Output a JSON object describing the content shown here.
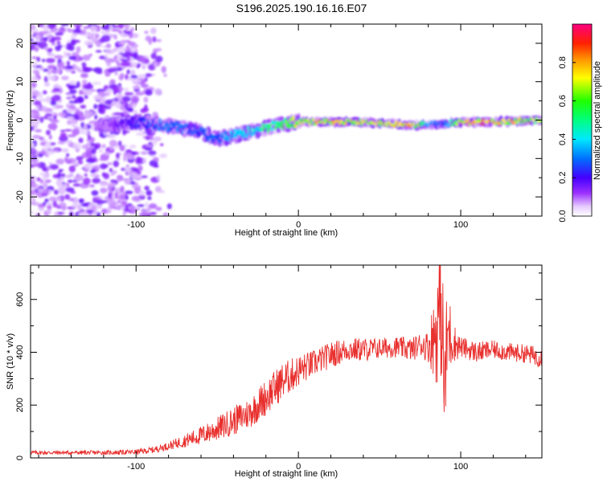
{
  "title": "S196.2025.190.16.16.E07",
  "chart_data": [
    {
      "type": "heatmap",
      "xlabel": "Height of straight line (km)",
      "ylabel": "Frequency (Hz)",
      "xlim": [
        -165,
        150
      ],
      "ylim": [
        -25,
        25
      ],
      "xticks": [
        -100,
        0,
        100
      ],
      "yticks": [
        -20,
        -10,
        0,
        10,
        20
      ],
      "colorbar": {
        "label": "Normalized spectral amplitude",
        "range": [
          0,
          1
        ],
        "ticks": [
          0.0,
          0.2,
          0.4,
          0.6,
          0.8
        ]
      },
      "ridge": {
        "x": [
          -120,
          -100,
          -80,
          -60,
          -50,
          -40,
          -30,
          -20,
          -10,
          0,
          20,
          40,
          60,
          70,
          80,
          90,
          100,
          120,
          150
        ],
        "freq": [
          -1.5,
          -0.5,
          -1.5,
          -3,
          -5,
          -4,
          -3,
          -2,
          -1,
          -0.5,
          -0.5,
          -0.5,
          -1,
          -1.5,
          -1,
          -1,
          -0.5,
          -0.5,
          0
        ],
        "amplitude": [
          0.1,
          0.25,
          0.35,
          0.3,
          0.35,
          0.4,
          0.45,
          0.55,
          0.6,
          0.8,
          0.85,
          0.8,
          0.85,
          0.9,
          0.4,
          0.3,
          0.85,
          0.9,
          0.7
        ]
      },
      "noise_region_x": [
        -165,
        -90
      ]
    },
    {
      "type": "line",
      "xlabel": "Height of straight line (km)",
      "ylabel": "SNR (10 * v/v)",
      "xlim": [
        -165,
        150
      ],
      "ylim": [
        0,
        730
      ],
      "xticks": [
        -100,
        0,
        100
      ],
      "yticks": [
        0,
        200,
        400,
        600
      ],
      "series": [
        {
          "color": "#e8302e",
          "x": [
            -165,
            -140,
            -120,
            -100,
            -90,
            -80,
            -70,
            -60,
            -50,
            -40,
            -30,
            -20,
            -10,
            0,
            10,
            20,
            30,
            40,
            50,
            60,
            70,
            75,
            80,
            85,
            88,
            90,
            92,
            95,
            100,
            110,
            120,
            130,
            140,
            150
          ],
          "values": [
            20,
            20,
            20,
            22,
            30,
            45,
            65,
            85,
            110,
            140,
            170,
            230,
            290,
            330,
            360,
            390,
            410,
            410,
            415,
            420,
            410,
            430,
            420,
            480,
            600,
            250,
            480,
            440,
            420,
            400,
            410,
            400,
            395,
            380
          ],
          "amplitude": [
            8,
            8,
            8,
            10,
            12,
            15,
            25,
            35,
            45,
            55,
            60,
            70,
            70,
            60,
            50,
            50,
            45,
            45,
            40,
            40,
            45,
            45,
            60,
            200,
            300,
            250,
            200,
            80,
            40,
            40,
            35,
            35,
            35,
            40
          ]
        }
      ]
    }
  ]
}
